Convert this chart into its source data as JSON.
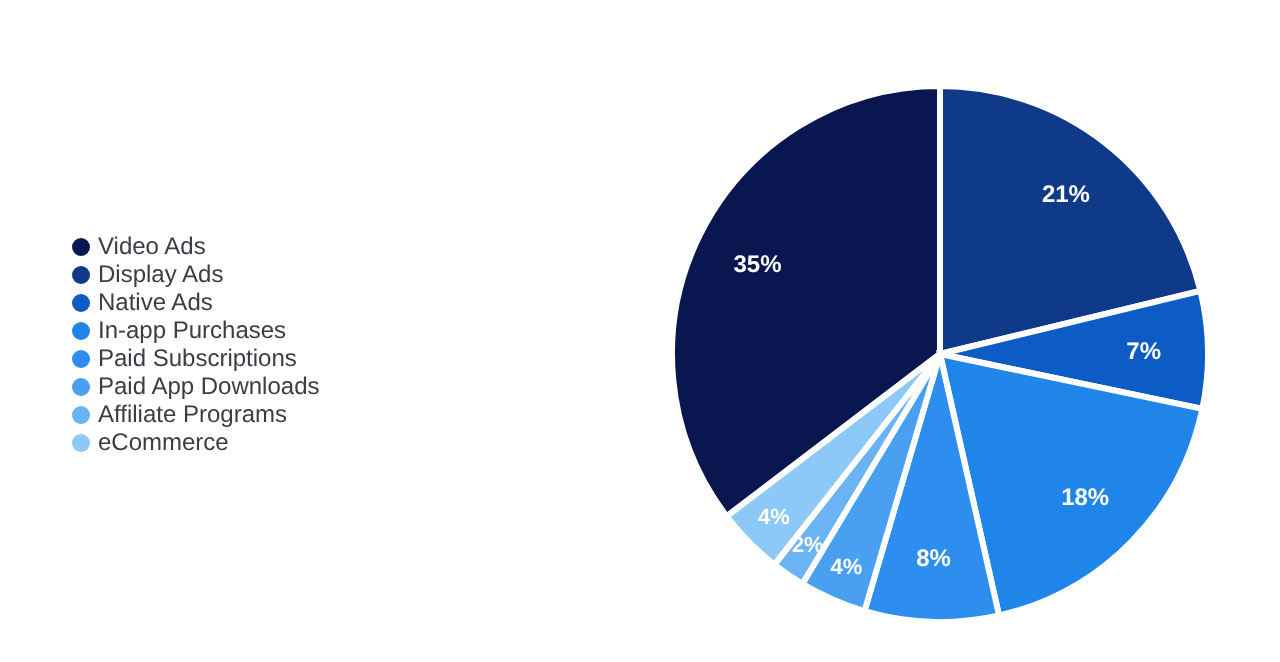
{
  "chart_data": {
    "type": "pie",
    "categories": [
      "Video Ads",
      "Display Ads",
      "Native Ads",
      "In-app Purchases",
      "Paid Subscriptions",
      "Paid App Downloads",
      "Affiliate Programs",
      "eCommerce"
    ],
    "values": [
      35,
      21,
      7,
      18,
      8,
      4,
      2,
      4
    ],
    "colors": [
      "#0a1650",
      "#0f3a8a",
      "#0d5bc4",
      "#1f85e8",
      "#2d8ef0",
      "#4aa0f0",
      "#6ab4f5",
      "#8cc8f8"
    ],
    "value_labels": [
      "35%",
      "21%",
      "7%",
      "18%",
      "8%",
      "4%",
      "2%",
      "4%"
    ],
    "legend": "left"
  }
}
